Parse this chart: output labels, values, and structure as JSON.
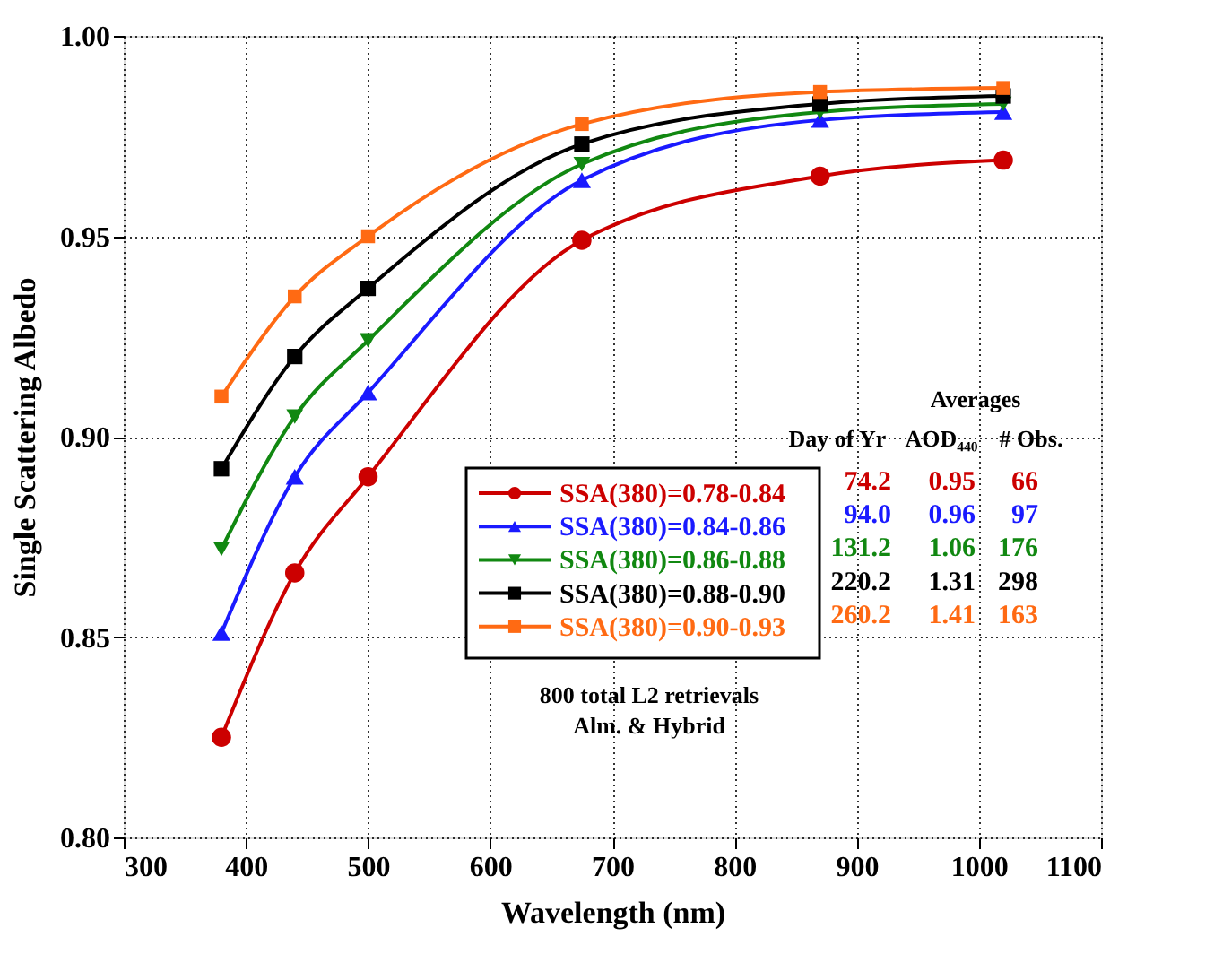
{
  "chart_data": {
    "type": "line",
    "xlabel": "Wavelength (nm)",
    "ylabel": "Single Scattering Albedo",
    "x": [
      380,
      440,
      500,
      675,
      870,
      1020
    ],
    "series": [
      {
        "name": "SSA(380)=0.78-0.84",
        "color": "#cc0000",
        "marker": "circle",
        "values": [
          0.825,
          0.866,
          0.89,
          0.949,
          0.965,
          0.969
        ]
      },
      {
        "name": "SSA(380)=0.84-0.86",
        "color": "#1a1aff",
        "marker": "triangle",
        "values": [
          0.851,
          0.89,
          0.911,
          0.964,
          0.979,
          0.981
        ]
      },
      {
        "name": "SSA(380)=0.86-0.88",
        "color": "#118811",
        "marker": "triangle-down",
        "values": [
          0.872,
          0.905,
          0.924,
          0.968,
          0.981,
          0.983
        ]
      },
      {
        "name": "SSA(380)=0.88-0.90",
        "color": "#000000",
        "marker": "square",
        "values": [
          0.892,
          0.92,
          0.937,
          0.973,
          0.983,
          0.985
        ]
      },
      {
        "name": "SSA(380)=0.90-0.93",
        "color": "#ff6a13",
        "marker": "square",
        "values": [
          0.91,
          0.935,
          0.95,
          0.978,
          0.986,
          0.987
        ]
      }
    ],
    "xlim": [
      300,
      1100
    ],
    "xticks": [
      300,
      400,
      500,
      600,
      700,
      800,
      900,
      1000,
      1100
    ],
    "ylim": [
      0.8,
      1.0
    ],
    "yticks": [
      {
        "value": 0.8,
        "label": "0.80"
      },
      {
        "value": 0.85,
        "label": "0.85"
      },
      {
        "value": 0.9,
        "label": "0.90"
      },
      {
        "value": 0.95,
        "label": "0.95"
      },
      {
        "value": 1.0,
        "label": "1.00"
      }
    ],
    "grid": true,
    "legend": "center",
    "line_style": "solid",
    "annotations": [
      "Averages",
      "Day of Yr",
      "AOD₄₄₀",
      "# Obs.",
      "74.2",
      "0.95",
      "66",
      "94.0",
      "0.96",
      "97",
      "131.2",
      "1.06",
      "176",
      "220.2",
      "1.31",
      "298",
      "260.2",
      "1.41",
      "163",
      "800 total L2 retrievals",
      "Alm. & Hybrid"
    ]
  }
}
